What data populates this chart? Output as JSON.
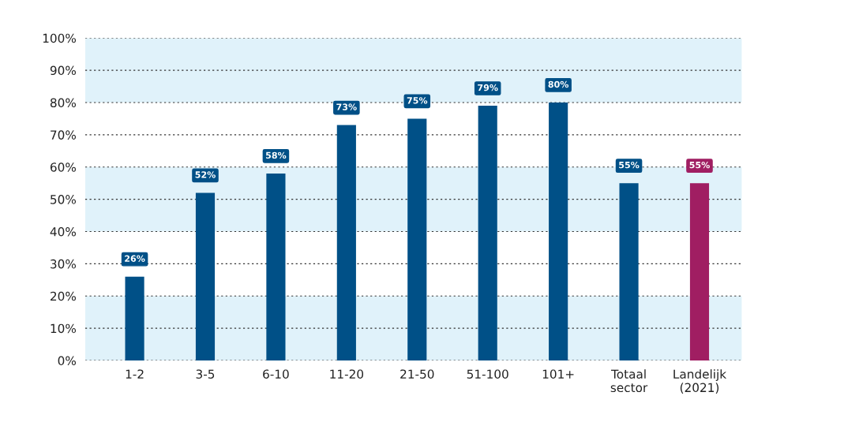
{
  "chart_data": {
    "type": "bar",
    "categories": [
      "1-2",
      "3-5",
      "6-10",
      "11-20",
      "21-50",
      "51-100",
      "101+",
      "Totaal\nsector",
      "Landelijk\n(2021)"
    ],
    "values": [
      26,
      52,
      58,
      73,
      75,
      79,
      80,
      55,
      55
    ],
    "colors": [
      "#005087",
      "#005087",
      "#005087",
      "#005087",
      "#005087",
      "#005087",
      "#005087",
      "#005087",
      "#a01e62"
    ],
    "value_labels": [
      "26%",
      "52%",
      "58%",
      "73%",
      "75%",
      "79%",
      "80%",
      "55%",
      "55%"
    ],
    "ylim": [
      0,
      100
    ],
    "yticks": [
      {
        "value": 0,
        "label": "0%"
      },
      {
        "value": 10,
        "label": "10%"
      },
      {
        "value": 20,
        "label": "20%"
      },
      {
        "value": 30,
        "label": "30%"
      },
      {
        "value": 40,
        "label": "40%"
      },
      {
        "value": 50,
        "label": "50%"
      },
      {
        "value": 60,
        "label": "60%"
      },
      {
        "value": 70,
        "label": "70%"
      },
      {
        "value": 80,
        "label": "80%"
      },
      {
        "value": 90,
        "label": "90%"
      },
      {
        "value": 100,
        "label": "100%"
      }
    ],
    "bands": [
      {
        "axis": "y",
        "from": 0,
        "to": 20,
        "color": "#e0f2fa"
      },
      {
        "axis": "y",
        "from": 40,
        "to": 60,
        "color": "#e0f2fa"
      },
      {
        "axis": "y",
        "from": 80,
        "to": 100,
        "color": "#e0f2fa"
      }
    ],
    "grid": "y"
  }
}
